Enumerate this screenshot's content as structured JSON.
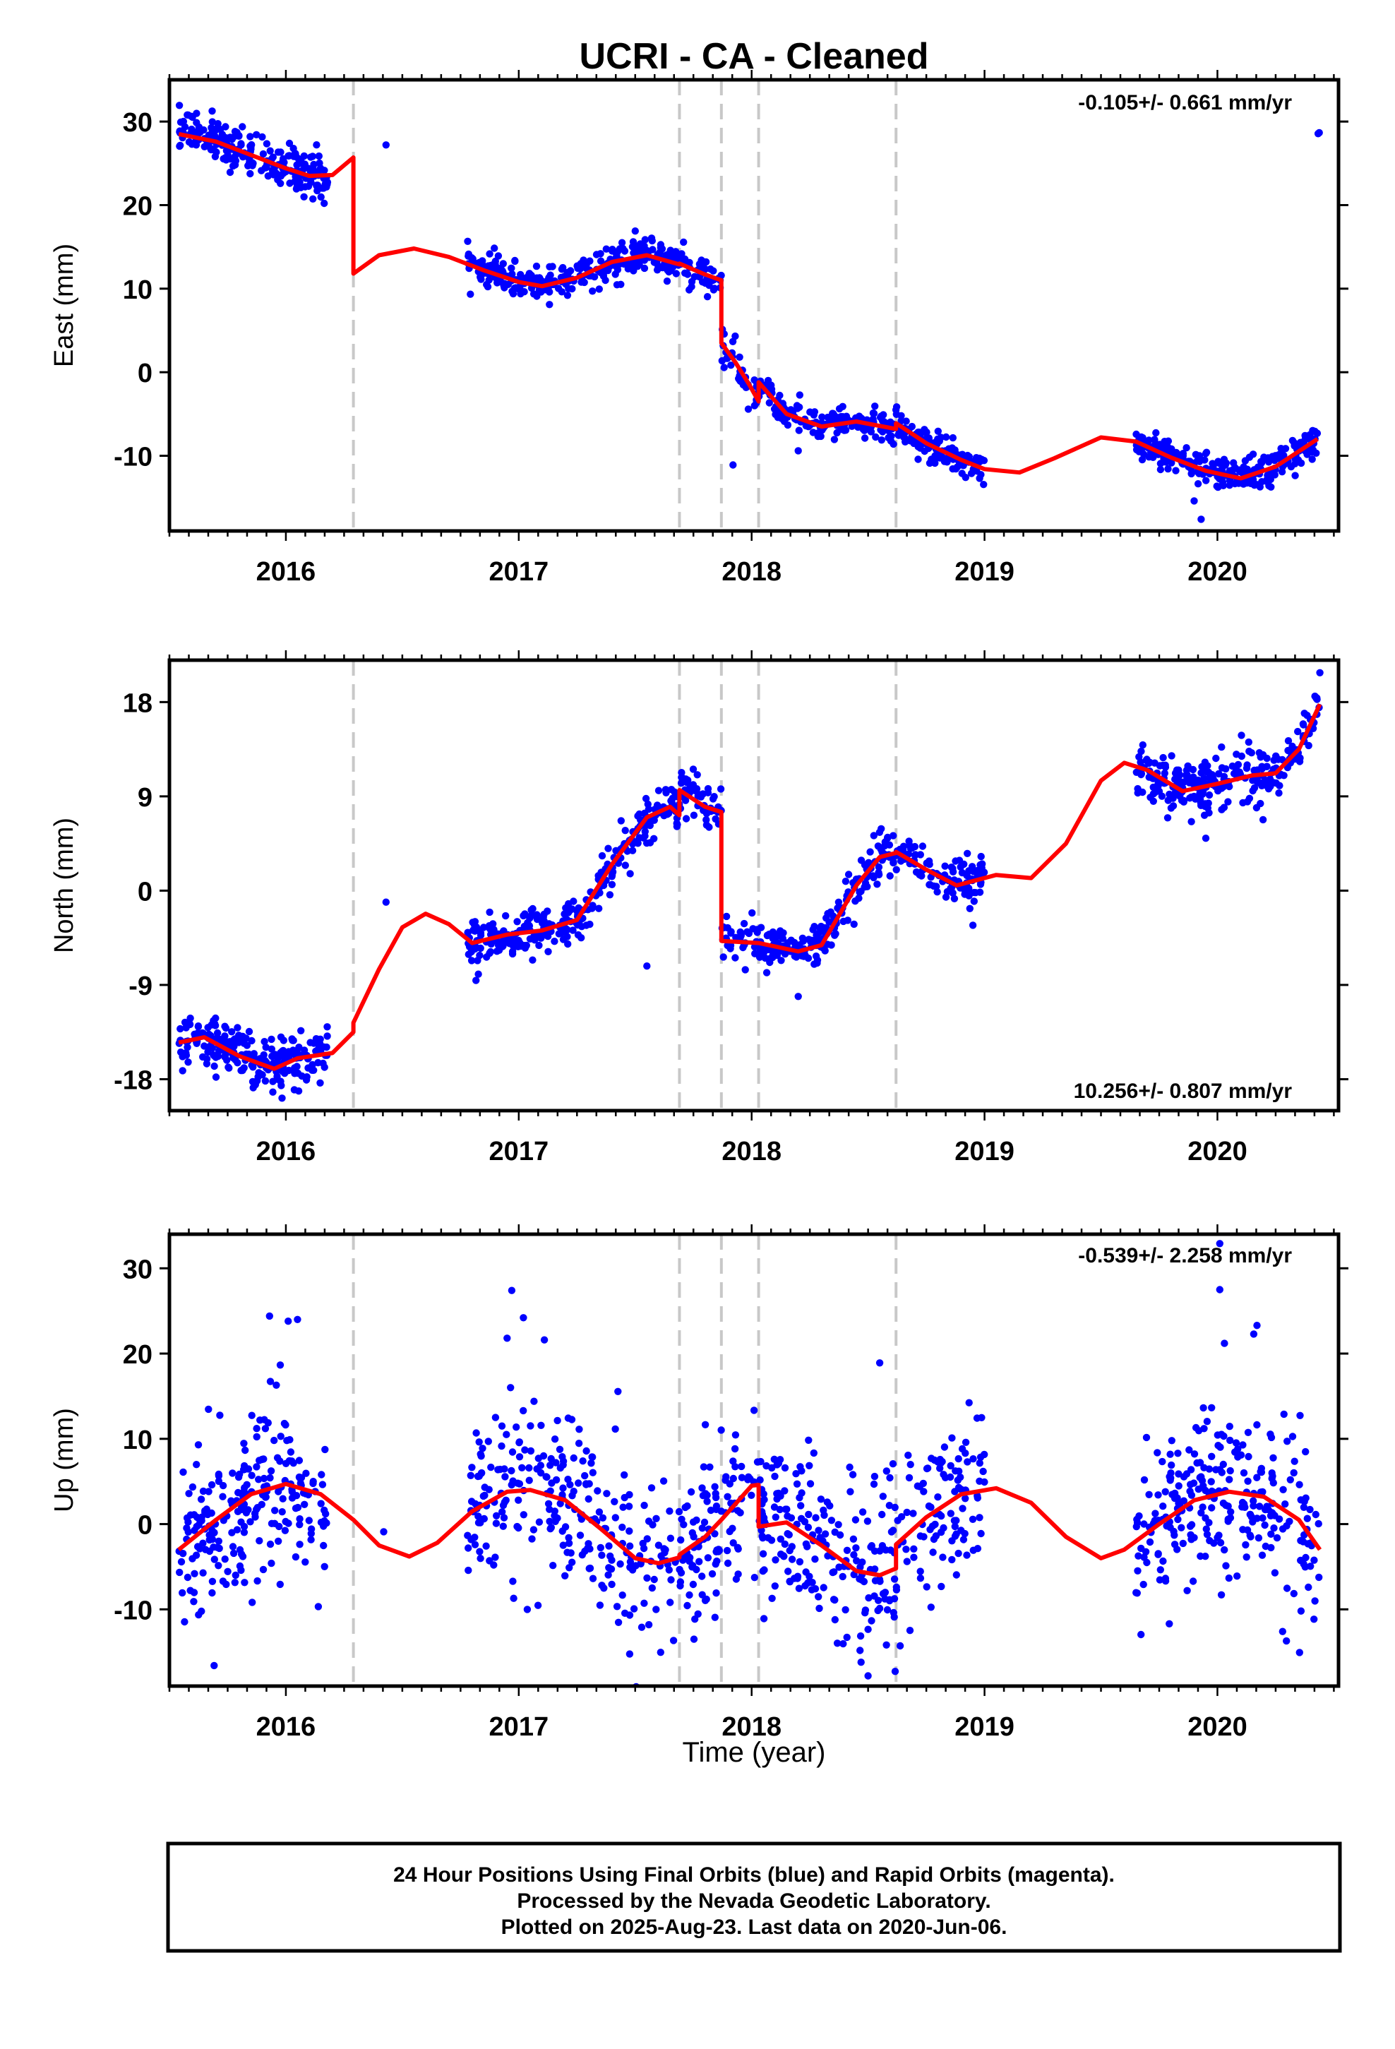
{
  "title": "UCRI  - CA - Cleaned",
  "xlabel": "Time (year)",
  "footer": {
    "line1": "24 Hour Positions Using Final Orbits (blue) and Rapid Orbits (magenta).",
    "line2": "Processed by the Nevada Geodetic Laboratory.",
    "line3": "Plotted on 2025-Aug-23. Last data on 2020-Jun-06."
  },
  "colors": {
    "points": "#0000ff",
    "model": "#ff0000",
    "steps": "#c8c8c8",
    "frame": "#000000"
  },
  "chart_data": [
    {
      "type": "scatter",
      "component": "east",
      "ylabel": "East (mm)",
      "rate": "-0.105+/- 0.661 mm/yr",
      "xlim": [
        2015.5,
        2020.52
      ],
      "ylim": [
        -19,
        35
      ],
      "yticks": [
        -10,
        0,
        10,
        20,
        30
      ],
      "xticks": [
        2016,
        2017,
        2018,
        2019,
        2020
      ],
      "steps": [
        2016.29,
        2017.69,
        2017.87,
        2018.03,
        2018.62
      ],
      "model": [
        [
          2015.54,
          28.5
        ],
        [
          2015.7,
          27.6
        ],
        [
          2015.85,
          26.0
        ],
        [
          2016.0,
          24.4
        ],
        [
          2016.1,
          23.5
        ],
        [
          2016.2,
          23.6
        ],
        [
          2016.29,
          25.7
        ],
        [
          2016.29,
          11.8
        ],
        [
          2016.4,
          14.0
        ],
        [
          2016.55,
          14.8
        ],
        [
          2016.7,
          13.8
        ],
        [
          2016.85,
          12.2
        ],
        [
          2017.0,
          10.8
        ],
        [
          2017.1,
          10.3
        ],
        [
          2017.25,
          11.3
        ],
        [
          2017.4,
          13.2
        ],
        [
          2017.55,
          14.0
        ],
        [
          2017.69,
          12.9
        ],
        [
          2017.69,
          13.0
        ],
        [
          2017.8,
          11.7
        ],
        [
          2017.87,
          11.0
        ],
        [
          2017.87,
          3.5
        ],
        [
          2017.93,
          1.2
        ],
        [
          2017.99,
          -1.5
        ],
        [
          2018.03,
          -3.5
        ],
        [
          2018.03,
          -1.2
        ],
        [
          2018.15,
          -5.0
        ],
        [
          2018.3,
          -6.5
        ],
        [
          2018.45,
          -5.9
        ],
        [
          2018.62,
          -6.8
        ],
        [
          2018.62,
          -6.1
        ],
        [
          2018.75,
          -8.5
        ],
        [
          2018.9,
          -10.5
        ],
        [
          2019.0,
          -11.6
        ],
        [
          2019.15,
          -12.0
        ],
        [
          2019.3,
          -10.3
        ],
        [
          2019.5,
          -7.8
        ],
        [
          2019.65,
          -8.3
        ],
        [
          2019.8,
          -10.2
        ],
        [
          2019.95,
          -11.8
        ],
        [
          2020.1,
          -12.7
        ],
        [
          2020.25,
          -11.3
        ],
        [
          2020.43,
          -8.0
        ]
      ],
      "clusters": [
        {
          "x": [
            2015.54,
            2016.18
          ],
          "trend": [
            29.2,
            23.0
          ],
          "spread": 1.3,
          "count": 230
        },
        {
          "x": [
            2016.78,
            2017.87
          ],
          "trend": "model",
          "spread": 1.0,
          "count": 330
        },
        {
          "x": [
            2017.87,
            2018.03
          ],
          "trend": "model",
          "spread": 1.3,
          "count": 35
        },
        {
          "x": [
            2018.03,
            2019.0
          ],
          "trend": "model",
          "spread": 0.9,
          "count": 300
        },
        {
          "x": [
            2019.65,
            2020.44
          ],
          "trend": "model",
          "spread": 1.0,
          "count": 260
        }
      ],
      "outliers": [
        [
          2016.43,
          27.2
        ],
        [
          2017.5,
          16.9
        ],
        [
          2017.92,
          -11.1
        ],
        [
          2018.2,
          -9.4
        ],
        [
          2019.93,
          -17.6
        ],
        [
          2019.9,
          -15.4
        ]
      ]
    },
    {
      "type": "scatter",
      "component": "north",
      "ylabel": "North (mm)",
      "rate": "10.256+/- 0.807 mm/yr",
      "xlim": [
        2015.5,
        2020.52
      ],
      "ylim": [
        -21,
        22
      ],
      "yticks": [
        -18,
        -9,
        0,
        9,
        18
      ],
      "xticks": [
        2016,
        2017,
        2018,
        2019,
        2020
      ],
      "steps": [
        2016.29,
        2017.69,
        2017.87,
        2018.03,
        2018.62
      ],
      "model": [
        [
          2015.54,
          -14.5
        ],
        [
          2015.65,
          -14.0
        ],
        [
          2015.8,
          -15.8
        ],
        [
          2015.95,
          -17.0
        ],
        [
          2016.05,
          -16.0
        ],
        [
          2016.2,
          -15.5
        ],
        [
          2016.29,
          -13.5
        ],
        [
          2016.29,
          -12.6
        ],
        [
          2016.4,
          -7.5
        ],
        [
          2016.5,
          -3.5
        ],
        [
          2016.6,
          -2.2
        ],
        [
          2016.7,
          -3.2
        ],
        [
          2016.8,
          -5.0
        ],
        [
          2016.95,
          -4.2
        ],
        [
          2017.1,
          -3.8
        ],
        [
          2017.25,
          -2.8
        ],
        [
          2017.4,
          2.5
        ],
        [
          2017.55,
          7.0
        ],
        [
          2017.65,
          8.0
        ],
        [
          2017.69,
          7.2
        ],
        [
          2017.69,
          9.6
        ],
        [
          2017.8,
          8.0
        ],
        [
          2017.87,
          7.5
        ],
        [
          2017.87,
          -4.8
        ],
        [
          2018.03,
          -5.0
        ],
        [
          2018.2,
          -5.8
        ],
        [
          2018.3,
          -5.2
        ],
        [
          2018.45,
          0.5
        ],
        [
          2018.55,
          3.2
        ],
        [
          2018.62,
          3.6
        ],
        [
          2018.62,
          3.7
        ],
        [
          2018.75,
          2.0
        ],
        [
          2018.88,
          0.5
        ],
        [
          2019.05,
          1.5
        ],
        [
          2019.2,
          1.2
        ],
        [
          2019.35,
          4.5
        ],
        [
          2019.5,
          10.5
        ],
        [
          2019.6,
          12.2
        ],
        [
          2019.7,
          11.5
        ],
        [
          2019.85,
          9.5
        ],
        [
          2020.0,
          10.2
        ],
        [
          2020.15,
          11.0
        ],
        [
          2020.25,
          11.2
        ],
        [
          2020.35,
          13.5
        ],
        [
          2020.44,
          17.8
        ]
      ],
      "clusters": [
        {
          "x": [
            2015.54,
            2016.18
          ],
          "trend": "model",
          "spread": 1.2,
          "count": 230
        },
        {
          "x": [
            2016.78,
            2017.87
          ],
          "trend": "model",
          "spread": 1.1,
          "count": 330
        },
        {
          "x": [
            2017.87,
            2018.03
          ],
          "trend": "model",
          "spread": 1.3,
          "count": 35
        },
        {
          "x": [
            2018.03,
            2019.0
          ],
          "trend": "model",
          "spread": 1.1,
          "count": 300
        },
        {
          "x": [
            2019.65,
            2020.44
          ],
          "trend": "model",
          "spread": 1.3,
          "count": 260
        }
      ],
      "outliers": [
        [
          2016.43,
          -1.1
        ],
        [
          2015.7,
          -17.8
        ],
        [
          2017.55,
          -7.2
        ],
        [
          2018.2,
          -10.1
        ],
        [
          2018.95,
          -3.3
        ],
        [
          2019.95,
          5.0
        ],
        [
          2020.44,
          20.8
        ]
      ]
    },
    {
      "type": "scatter",
      "component": "up",
      "ylabel": "Up (mm)",
      "rate": "-0.539+/- 2.258 mm/yr",
      "xlim": [
        2015.5,
        2020.52
      ],
      "ylim": [
        -19,
        34
      ],
      "yticks": [
        -10,
        0,
        10,
        20,
        30
      ],
      "xticks": [
        2016,
        2017,
        2018,
        2019,
        2020
      ],
      "steps": [
        2016.29,
        2017.69,
        2017.87,
        2018.03,
        2018.62
      ],
      "model": [
        [
          2015.54,
          -3.0
        ],
        [
          2015.7,
          0.5
        ],
        [
          2015.85,
          3.5
        ],
        [
          2016.0,
          4.7
        ],
        [
          2016.15,
          3.5
        ],
        [
          2016.29,
          0.5
        ],
        [
          2016.4,
          -2.5
        ],
        [
          2016.53,
          -3.8
        ],
        [
          2016.65,
          -2.2
        ],
        [
          2016.8,
          1.5
        ],
        [
          2016.95,
          3.8
        ],
        [
          2017.05,
          4.0
        ],
        [
          2017.2,
          2.8
        ],
        [
          2017.35,
          -0.5
        ],
        [
          2017.5,
          -4.0
        ],
        [
          2017.6,
          -4.6
        ],
        [
          2017.69,
          -3.9
        ],
        [
          2017.69,
          -3.6
        ],
        [
          2017.8,
          -1.5
        ],
        [
          2017.87,
          0.5
        ],
        [
          2018.0,
          4.5
        ],
        [
          2018.03,
          4.6
        ],
        [
          2018.03,
          -0.3
        ],
        [
          2018.15,
          0.2
        ],
        [
          2018.3,
          -2.5
        ],
        [
          2018.45,
          -5.5
        ],
        [
          2018.55,
          -6.0
        ],
        [
          2018.62,
          -5.2
        ],
        [
          2018.62,
          -2.4
        ],
        [
          2018.75,
          0.8
        ],
        [
          2018.9,
          3.5
        ],
        [
          2019.05,
          4.2
        ],
        [
          2019.2,
          2.5
        ],
        [
          2019.35,
          -1.5
        ],
        [
          2019.5,
          -4.0
        ],
        [
          2019.6,
          -3.0
        ],
        [
          2019.75,
          0.0
        ],
        [
          2019.9,
          2.8
        ],
        [
          2020.05,
          3.8
        ],
        [
          2020.2,
          3.2
        ],
        [
          2020.35,
          0.5
        ],
        [
          2020.44,
          -3.0
        ]
      ],
      "clusters": [
        {
          "x": [
            2015.54,
            2016.18
          ],
          "trend": "model",
          "spread": 5.0,
          "count": 230
        },
        {
          "x": [
            2016.78,
            2017.87
          ],
          "trend": "model",
          "spread": 5.0,
          "count": 330
        },
        {
          "x": [
            2017.87,
            2018.03
          ],
          "trend": "model",
          "spread": 5.0,
          "count": 35
        },
        {
          "x": [
            2018.03,
            2019.0
          ],
          "trend": "model",
          "spread": 5.0,
          "count": 300
        },
        {
          "x": [
            2019.65,
            2020.44
          ],
          "trend": "model",
          "spread": 5.0,
          "count": 260
        }
      ],
      "outliers": [
        [
          2016.42,
          -0.9
        ],
        [
          2016.97,
          27.4
        ],
        [
          2017.02,
          24.2
        ],
        [
          2016.95,
          21.8
        ],
        [
          2017.11,
          21.6
        ],
        [
          2015.93,
          24.4
        ],
        [
          2016.01,
          23.8
        ],
        [
          2016.05,
          24.0
        ],
        [
          2018.55,
          18.9
        ],
        [
          2018.5,
          -17.8
        ],
        [
          2018.47,
          -16.2
        ],
        [
          2020.01,
          32.9
        ],
        [
          2020.01,
          27.5
        ],
        [
          2020.03,
          21.2
        ],
        [
          2020.17,
          23.3
        ],
        [
          2019.87,
          -7.8
        ],
        [
          2020.28,
          -12.6
        ]
      ]
    }
  ]
}
